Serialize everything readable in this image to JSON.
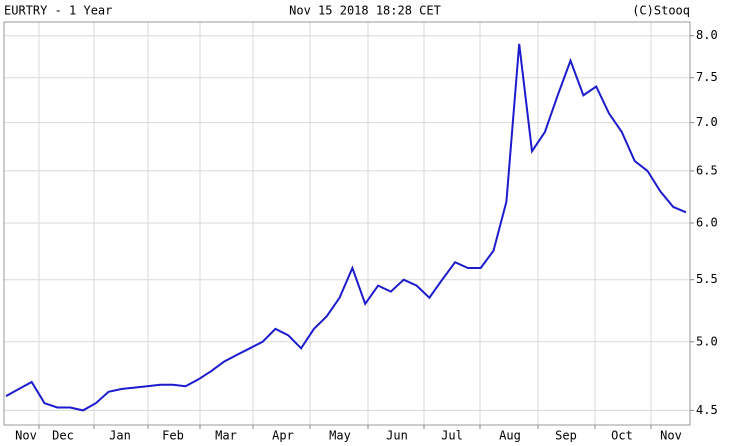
{
  "chart_data": {
    "type": "line",
    "title": "EURTRY - 1 Year",
    "subtitle": "Nov 15 2018 18:28 CET",
    "credit": "(C)Stooq",
    "month_labels": [
      "Nov",
      "Dec",
      "Jan",
      "Feb",
      "Mar",
      "Apr",
      "May",
      "Jun",
      "Jul",
      "Aug",
      "Sep",
      "Oct",
      "Nov"
    ],
    "series": [
      {
        "name": "EURTRY",
        "color": "#1c1ccc",
        "values": [
          4.6,
          4.65,
          4.7,
          4.55,
          4.52,
          4.52,
          4.5,
          4.55,
          4.63,
          4.65,
          4.66,
          4.67,
          4.68,
          4.68,
          4.67,
          4.72,
          4.78,
          4.85,
          4.9,
          4.95,
          5.0,
          5.1,
          5.05,
          4.95,
          5.1,
          5.2,
          5.35,
          5.6,
          5.3,
          5.45,
          5.4,
          5.5,
          5.45,
          5.35,
          5.5,
          5.65,
          5.6,
          5.6,
          5.75,
          6.2,
          7.9,
          6.7,
          6.9,
          7.3,
          7.7,
          7.3,
          7.4,
          7.1,
          6.9,
          6.6,
          6.5,
          6.3,
          6.15,
          6.1
        ]
      }
    ],
    "ylim": [
      4.4,
      8.17
    ],
    "log_scale": true,
    "grid": true,
    "yticks": [
      4.5,
      {
        "value": 5,
        "label": "5.0"
      },
      5.5,
      {
        "value": 6,
        "label": "6.0"
      },
      6.5,
      {
        "value": 7,
        "label": "7.0"
      },
      7.5,
      {
        "value": 8,
        "label": "8.0"
      }
    ]
  }
}
